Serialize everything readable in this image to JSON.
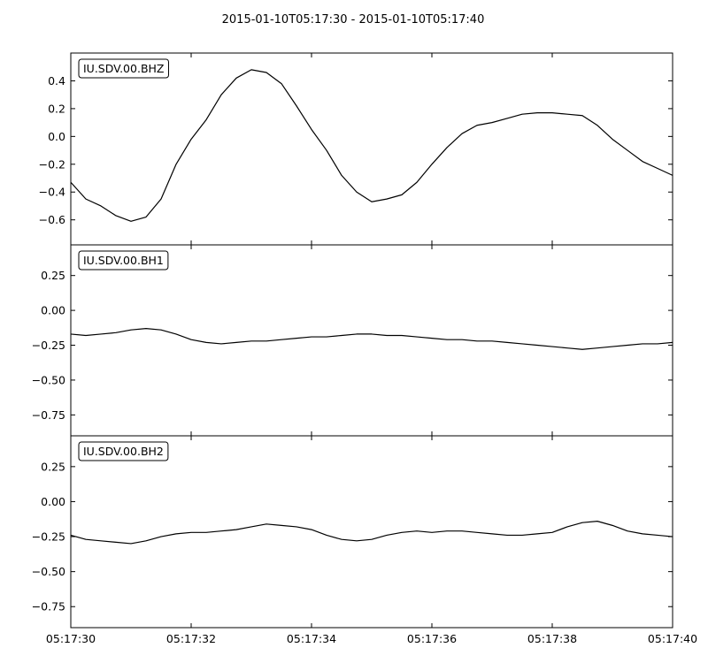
{
  "figure": {
    "title": "2015-01-10T05:17:30  -  2015-01-10T05:17:40"
  },
  "chart_data": [
    {
      "type": "line",
      "title": "IU.SDV.00.BHZ",
      "xlim": [
        "05:17:30",
        "05:17:40"
      ],
      "x_ticks": [
        "05:17:30",
        "05:17:32",
        "05:17:34",
        "05:17:36",
        "05:17:38",
        "05:17:40"
      ],
      "ylim": [
        -0.78,
        0.6
      ],
      "y_ticks": [
        0.4,
        0.2,
        0.0,
        -0.2,
        -0.4,
        -0.6
      ],
      "y_tick_labels": [
        "0.4",
        "0.2",
        "0.0",
        "−0.2",
        "−0.4",
        "−0.6"
      ],
      "series": [
        {
          "color": "#000000",
          "x_seconds": [
            0,
            0.25,
            0.5,
            0.75,
            1.0,
            1.25,
            1.5,
            1.75,
            2.0,
            2.25,
            2.5,
            2.75,
            3.0,
            3.25,
            3.5,
            3.75,
            4.0,
            4.25,
            4.5,
            4.75,
            5.0,
            5.25,
            5.5,
            5.75,
            6.0,
            6.25,
            6.5,
            6.75,
            7.0,
            7.25,
            7.5,
            7.75,
            8.0,
            8.25,
            8.5,
            8.75,
            9.0,
            9.25,
            9.5,
            9.75,
            10.0
          ],
          "values": [
            -0.33,
            -0.45,
            -0.5,
            -0.57,
            -0.61,
            -0.58,
            -0.45,
            -0.2,
            -0.02,
            0.12,
            0.3,
            0.42,
            0.48,
            0.46,
            0.38,
            0.22,
            0.05,
            -0.1,
            -0.28,
            -0.4,
            -0.47,
            -0.45,
            -0.42,
            -0.33,
            -0.2,
            -0.08,
            0.02,
            0.08,
            0.1,
            0.13,
            0.16,
            0.17,
            0.17,
            0.16,
            0.15,
            0.08,
            -0.02,
            -0.1,
            -0.18,
            -0.23,
            -0.28
          ]
        }
      ]
    },
    {
      "type": "line",
      "title": "IU.SDV.00.BH1",
      "xlim": [
        "05:17:30",
        "05:17:40"
      ],
      "x_ticks": [
        "05:17:30",
        "05:17:32",
        "05:17:34",
        "05:17:36",
        "05:17:38",
        "05:17:40"
      ],
      "ylim": [
        -0.9,
        0.47
      ],
      "y_ticks": [
        0.25,
        0.0,
        -0.25,
        -0.5,
        -0.75
      ],
      "y_tick_labels": [
        "0.25",
        "0.00",
        "−0.25",
        "−0.50",
        "−0.75"
      ],
      "series": [
        {
          "color": "#000000",
          "x_seconds": [
            0,
            0.25,
            0.5,
            0.75,
            1.0,
            1.25,
            1.5,
            1.75,
            2.0,
            2.25,
            2.5,
            2.75,
            3.0,
            3.25,
            3.5,
            3.75,
            4.0,
            4.25,
            4.5,
            4.75,
            5.0,
            5.25,
            5.5,
            5.75,
            6.0,
            6.25,
            6.5,
            6.75,
            7.0,
            7.25,
            7.5,
            7.75,
            8.0,
            8.25,
            8.5,
            8.75,
            9.0,
            9.25,
            9.5,
            9.75,
            10.0
          ],
          "values": [
            -0.17,
            -0.18,
            -0.17,
            -0.16,
            -0.14,
            -0.13,
            -0.14,
            -0.17,
            -0.21,
            -0.23,
            -0.24,
            -0.23,
            -0.22,
            -0.22,
            -0.21,
            -0.2,
            -0.19,
            -0.19,
            -0.18,
            -0.17,
            -0.17,
            -0.18,
            -0.18,
            -0.19,
            -0.2,
            -0.21,
            -0.21,
            -0.22,
            -0.22,
            -0.23,
            -0.24,
            -0.25,
            -0.26,
            -0.27,
            -0.28,
            -0.27,
            -0.26,
            -0.25,
            -0.24,
            -0.24,
            -0.23
          ]
        }
      ]
    },
    {
      "type": "line",
      "title": "IU.SDV.00.BH2",
      "xlim": [
        "05:17:30",
        "05:17:40"
      ],
      "x_ticks": [
        "05:17:30",
        "05:17:32",
        "05:17:34",
        "05:17:36",
        "05:17:38",
        "05:17:40"
      ],
      "x_tick_labels": [
        "05:17:30",
        "05:17:32",
        "05:17:34",
        "05:17:36",
        "05:17:38",
        "05:17:40"
      ],
      "ylim": [
        -0.9,
        0.47
      ],
      "y_ticks": [
        0.25,
        0.0,
        -0.25,
        -0.5,
        -0.75
      ],
      "y_tick_labels": [
        "0.25",
        "0.00",
        "−0.25",
        "−0.50",
        "−0.75"
      ],
      "series": [
        {
          "color": "#000000",
          "x_seconds": [
            0,
            0.25,
            0.5,
            0.75,
            1.0,
            1.25,
            1.5,
            1.75,
            2.0,
            2.25,
            2.5,
            2.75,
            3.0,
            3.25,
            3.5,
            3.75,
            4.0,
            4.25,
            4.5,
            4.75,
            5.0,
            5.25,
            5.5,
            5.75,
            6.0,
            6.25,
            6.5,
            6.75,
            7.0,
            7.25,
            7.5,
            7.75,
            8.0,
            8.25,
            8.5,
            8.75,
            9.0,
            9.25,
            9.5,
            9.75,
            10.0
          ],
          "values": [
            -0.24,
            -0.27,
            -0.28,
            -0.29,
            -0.3,
            -0.28,
            -0.25,
            -0.23,
            -0.22,
            -0.22,
            -0.21,
            -0.2,
            -0.18,
            -0.16,
            -0.17,
            -0.18,
            -0.2,
            -0.24,
            -0.27,
            -0.28,
            -0.27,
            -0.24,
            -0.22,
            -0.21,
            -0.22,
            -0.21,
            -0.21,
            -0.22,
            -0.23,
            -0.24,
            -0.24,
            -0.23,
            -0.22,
            -0.18,
            -0.15,
            -0.14,
            -0.17,
            -0.21,
            -0.23,
            -0.24,
            -0.25
          ]
        }
      ]
    }
  ]
}
